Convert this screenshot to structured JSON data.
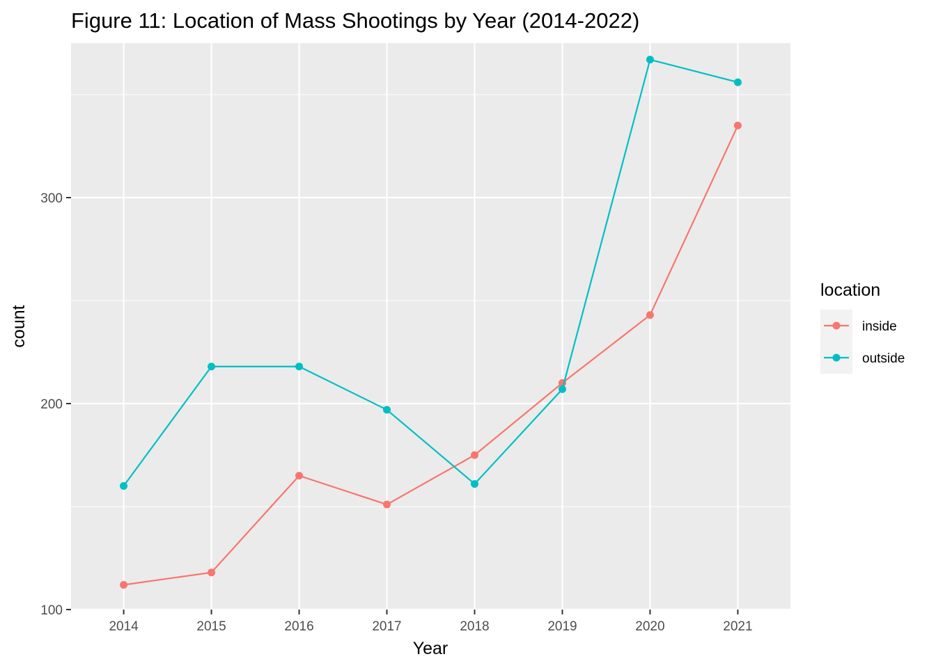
{
  "chart_data": {
    "type": "line",
    "title": "Figure 11: Location of Mass Shootings by Year (2014-2022)",
    "xlabel": "Year",
    "ylabel": "count",
    "x": [
      2014,
      2015,
      2016,
      2017,
      2018,
      2019,
      2020,
      2021
    ],
    "x_tick_labels": [
      "2014",
      "2015",
      "2016",
      "2017",
      "2018",
      "2019",
      "2020",
      "2021"
    ],
    "y_ticks": [
      100,
      200,
      300
    ],
    "y_tick_labels": [
      "100",
      "200",
      "300"
    ],
    "xlim": [
      2013.4,
      2021.6
    ],
    "ylim": [
      100,
      375
    ],
    "grid": true,
    "legend": {
      "title": "location",
      "position": "right"
    },
    "series": [
      {
        "name": "inside",
        "color": "#F8766D",
        "values": [
          112,
          118,
          165,
          151,
          175,
          210,
          243,
          335
        ]
      },
      {
        "name": "outside",
        "color": "#00BFC4",
        "values": [
          160,
          218,
          218,
          197,
          161,
          207,
          367,
          356
        ]
      }
    ],
    "panel_background": "#EBEBEB",
    "grid_color": "#FFFFFF"
  }
}
